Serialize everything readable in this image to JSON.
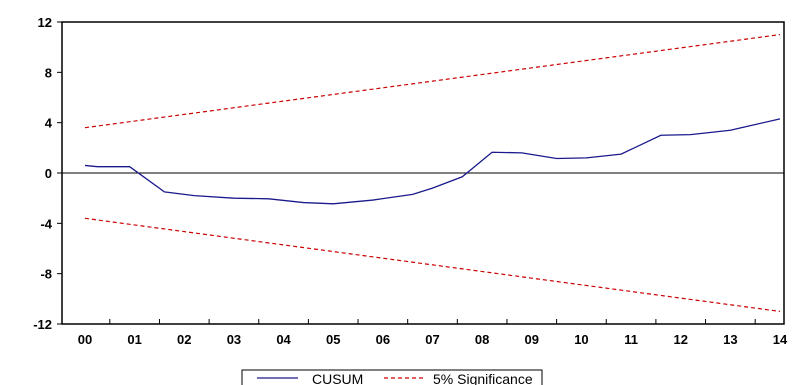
{
  "chart_data": {
    "type": "line",
    "title": "",
    "xlabel": "",
    "ylabel": "",
    "categories": [
      "00",
      "01",
      "02",
      "03",
      "04",
      "05",
      "06",
      "07",
      "08",
      "09",
      "10",
      "11",
      "12",
      "13",
      "14"
    ],
    "ylim": [
      -12,
      12
    ],
    "yticks": [
      12,
      8,
      4,
      0,
      -4,
      -8,
      -12
    ],
    "zero_line": true,
    "grid": false,
    "legend_position": "bottom-center",
    "series": [
      {
        "name": "CUSUM",
        "style": "solid",
        "color": "#1a1a8c",
        "x": [
          0.0,
          0.25,
          0.9,
          1.6,
          2.2,
          3.0,
          3.7,
          4.4,
          5.0,
          5.8,
          6.6,
          7.0,
          7.6,
          8.2,
          8.8,
          9.5,
          10.1,
          10.8,
          11.6,
          12.2,
          13.0,
          14.0
        ],
        "values": [
          0.6,
          0.5,
          0.5,
          -1.5,
          -1.8,
          -2.0,
          -2.05,
          -2.35,
          -2.45,
          -2.15,
          -1.7,
          -1.2,
          -0.3,
          1.65,
          1.6,
          1.15,
          1.2,
          1.5,
          3.0,
          3.05,
          3.4,
          4.3
        ]
      },
      {
        "name": "5% Significance",
        "style": "dashed",
        "color": "#cc0000",
        "x": [
          0,
          14
        ],
        "upper": [
          3.6,
          11.0
        ],
        "lower": [
          -3.6,
          -11.0
        ]
      }
    ]
  }
}
